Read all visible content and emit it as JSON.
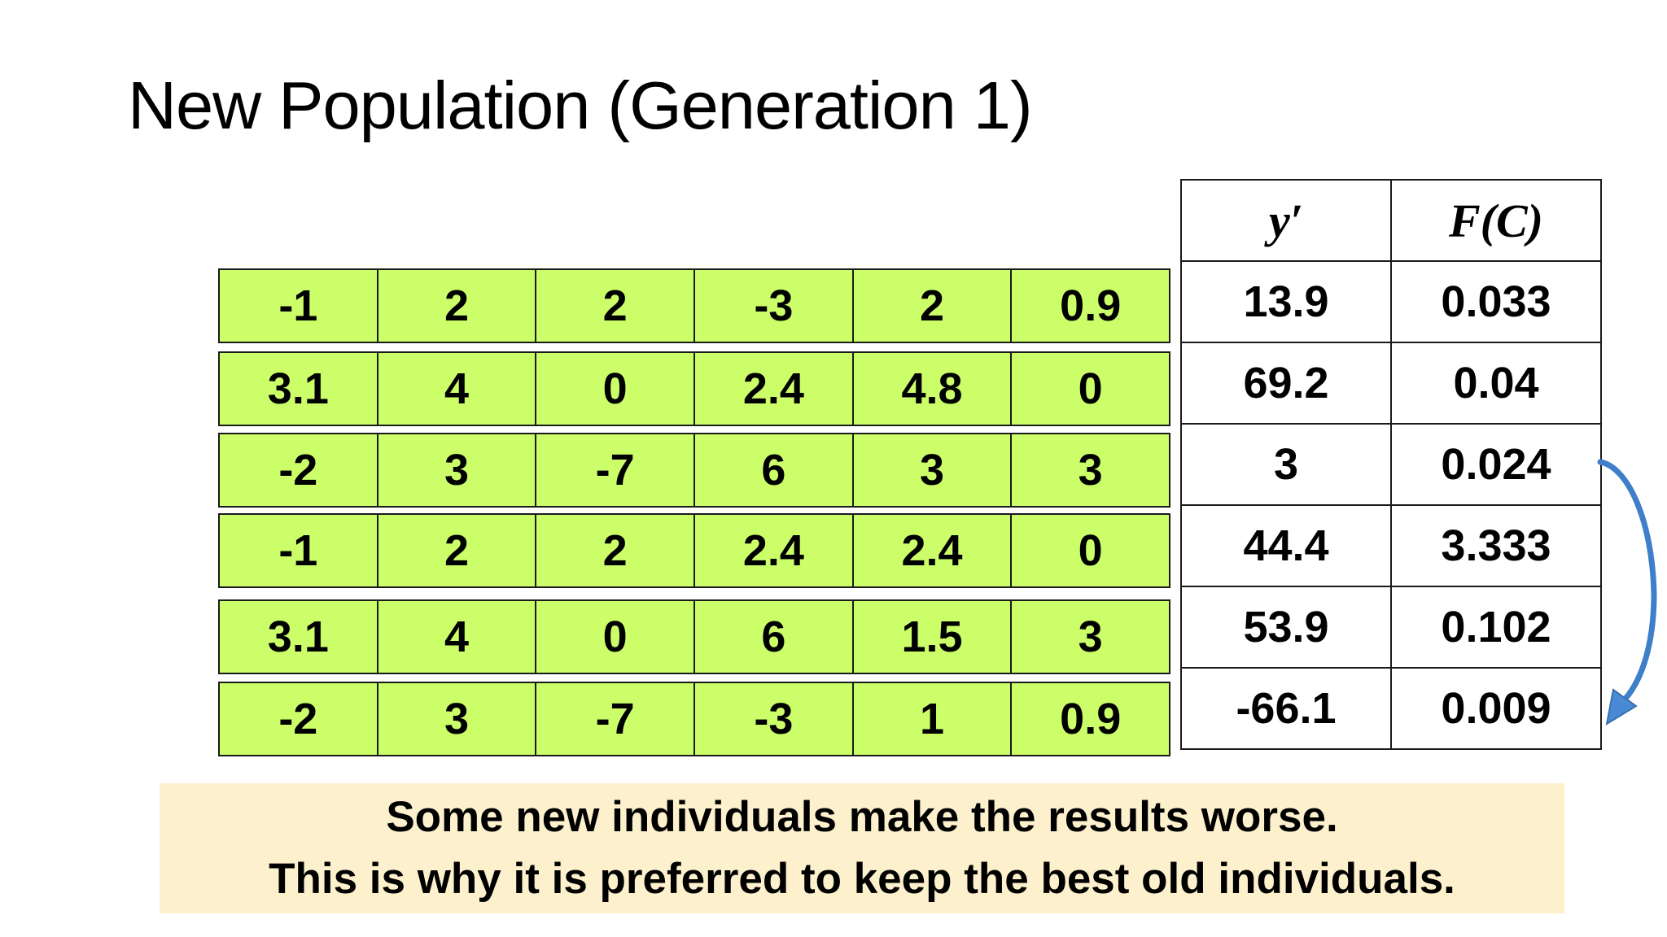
{
  "title": "New Population (Generation 1)",
  "population_rows": [
    [
      "-1",
      "2",
      "2",
      "-3",
      "2",
      "0.9"
    ],
    [
      "3.1",
      "4",
      "0",
      "2.4",
      "4.8",
      "0"
    ],
    [
      "-2",
      "3",
      "-7",
      "6",
      "3",
      "3"
    ],
    [
      "-1",
      "2",
      "2",
      "2.4",
      "2.4",
      "0"
    ],
    [
      "3.1",
      "4",
      "0",
      "6",
      "1.5",
      "3"
    ],
    [
      "-2",
      "3",
      "-7",
      "-3",
      "1",
      "0.9"
    ]
  ],
  "fitness_table": {
    "headers": [
      "y′",
      "F(C)"
    ],
    "rows": [
      [
        "13.9",
        "0.033"
      ],
      [
        "69.2",
        "0.04"
      ],
      [
        "3",
        "0.024"
      ],
      [
        "44.4",
        "3.333"
      ],
      [
        "53.9",
        "0.102"
      ],
      [
        "-66.1",
        "0.009"
      ]
    ]
  },
  "note": {
    "line1": "Some new individuals make the results worse.",
    "line2": "This is why it is preferred to keep the best old individuals."
  },
  "colors": {
    "gene_cell": "#ccfe6a",
    "note_background": "#fdf0cc",
    "arrow": "#3f7fc9"
  },
  "icons": {
    "arrow": "curved-arrow-icon"
  }
}
